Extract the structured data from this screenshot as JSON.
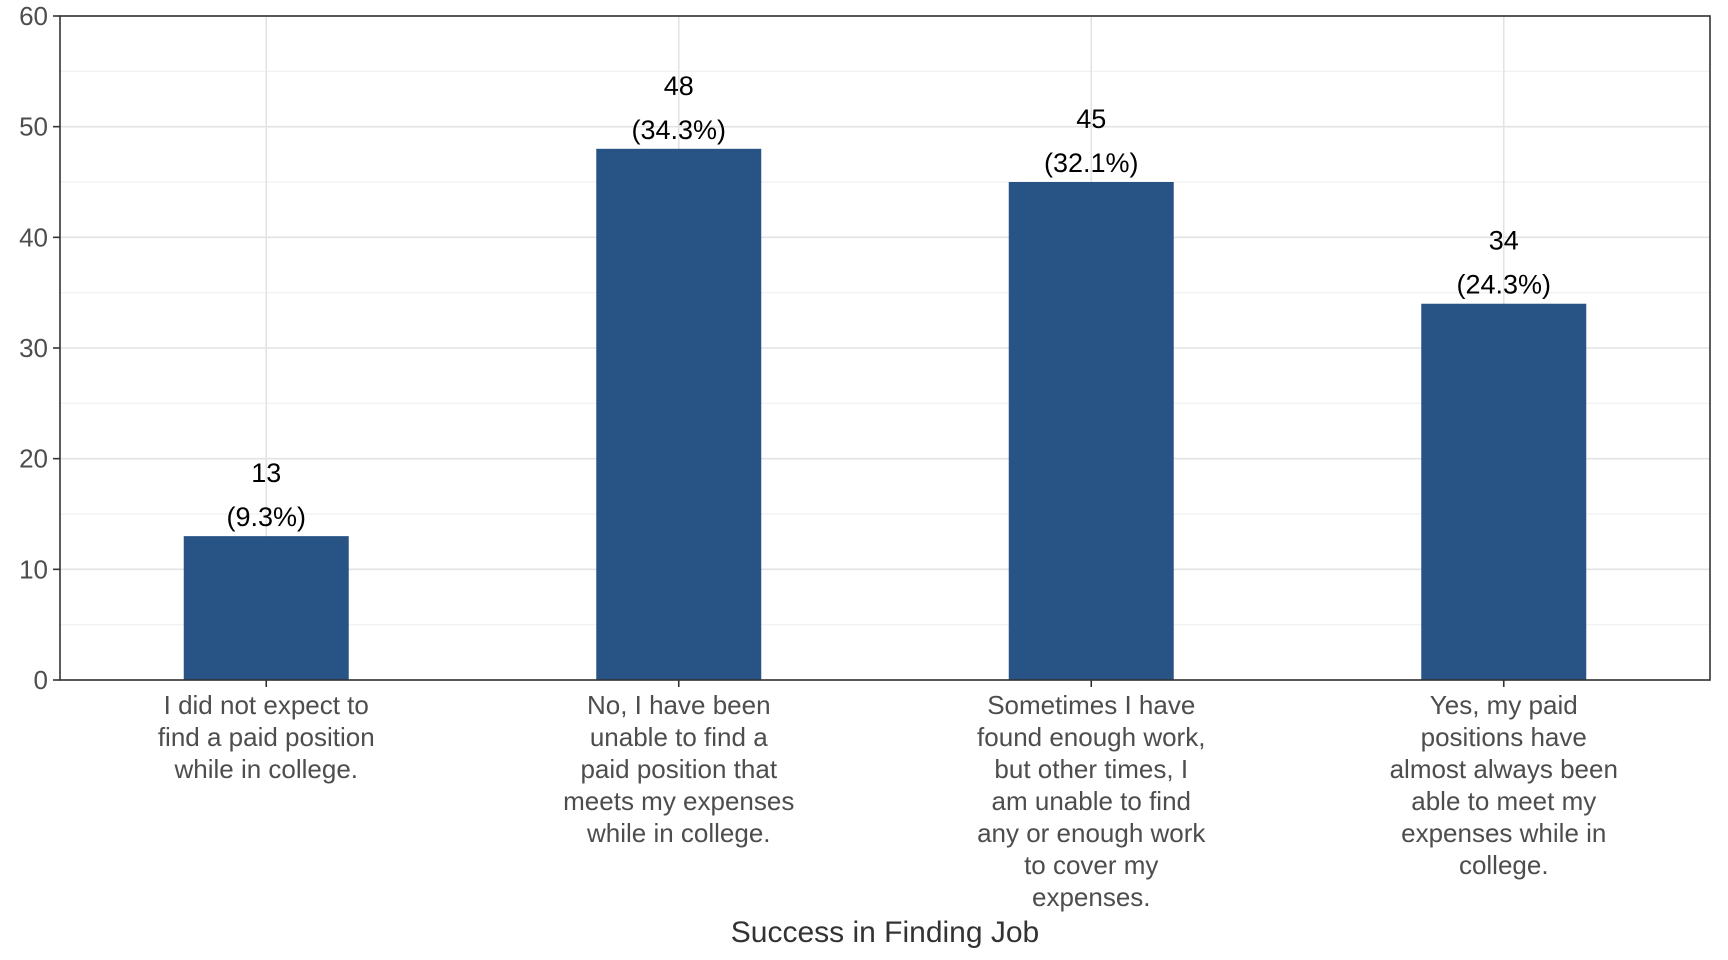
{
  "chart_data": {
    "type": "bar",
    "title": "",
    "xlabel": "Success in Finding Job",
    "ylabel": "",
    "ylim": [
      0,
      60
    ],
    "yticks": [
      "0",
      "10",
      "20",
      "30",
      "40",
      "50",
      "60"
    ],
    "grid": true,
    "legend": "none",
    "bar_color": "#285385",
    "categories": [
      [
        "I did not expect to",
        "find a paid position",
        "while in college."
      ],
      [
        "No, I have been",
        "unable to find a",
        "paid position that",
        "meets my expenses",
        "while in college."
      ],
      [
        "Sometimes I have",
        "found enough work,",
        "but other times, I",
        "am unable to find",
        "any or enough work",
        "to cover my",
        "expenses."
      ],
      [
        "Yes, my paid",
        "positions have",
        "almost always been",
        "able to meet my",
        "expenses while in",
        "college."
      ]
    ],
    "values": [
      13,
      48,
      45,
      34
    ],
    "data_labels": [
      [
        "13",
        "(9.3%)"
      ],
      [
        "48",
        "(34.3%)"
      ],
      [
        "45",
        "(32.1%)"
      ],
      [
        "34",
        "(24.3%)"
      ]
    ]
  }
}
